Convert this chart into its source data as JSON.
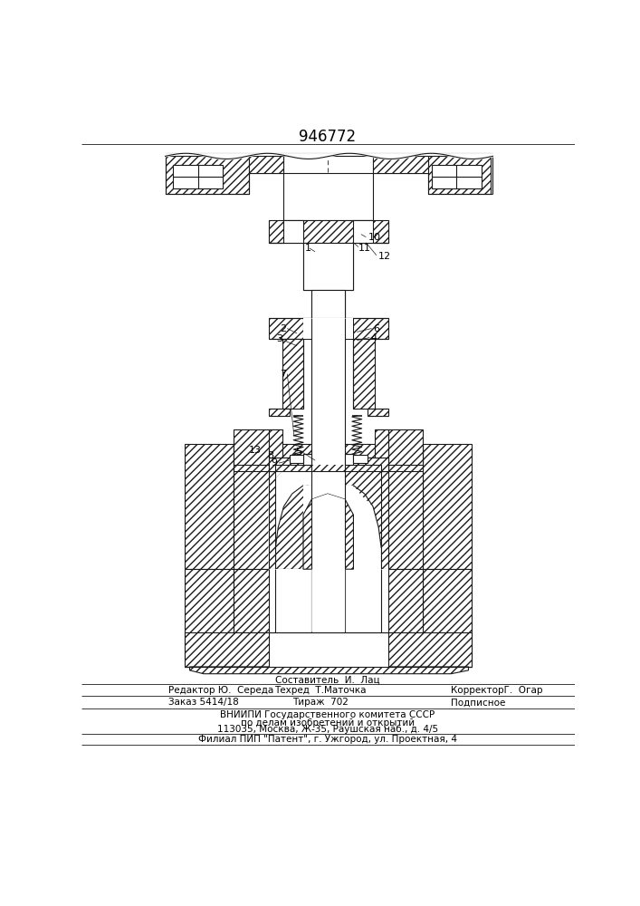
{
  "title": "946772",
  "lc": "#1a1a1a",
  "footer_lines": [
    "Составитель  И.  Лац",
    "Редактор Ю.  Середа",
    "Техред  Т.Маточка",
    "КорректорГ.  Огар",
    "Заказ 5414/18",
    "Тираж  702",
    "Подписное",
    "ВНИИПИ Государственного комитета СССР",
    "по делам изобретений и открытий",
    "113035, Москва, Ж-35, Раушская наб., д. 4/5",
    "Филиал ППП \"Патент\", г. Ужгород, ул. Проектная, 4"
  ]
}
